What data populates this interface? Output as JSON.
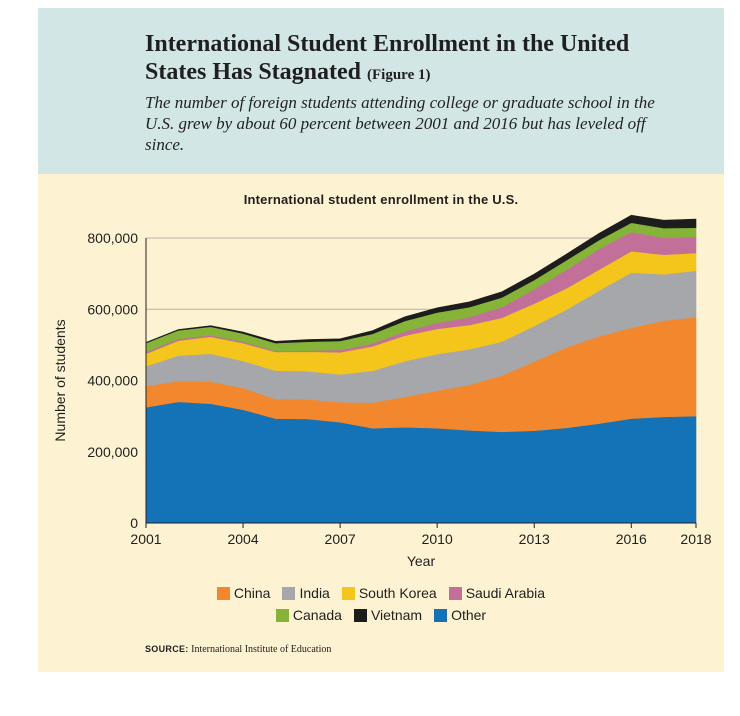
{
  "header": {
    "title": "International Student Enrollment in the United States Has Stagnated",
    "figure_tag": "(Figure 1)",
    "subtitle": "The number of foreign students attending college or graduate school in the U.S. grew by about 60 percent between 2001 and 2016 but has leveled off since."
  },
  "source": {
    "label": "SOURCE:",
    "text": "International Institute of Education"
  },
  "chart_data": {
    "type": "area",
    "stacked": true,
    "title": "International student enrollment in the U.S.",
    "xlabel": "Year",
    "ylabel": "Number of students",
    "xlim": [
      2001,
      2018
    ],
    "ylim": [
      0,
      800000
    ],
    "x_ticks": [
      2001,
      2004,
      2007,
      2010,
      2013,
      2016,
      2018
    ],
    "y_ticks": [
      0,
      200000,
      400000,
      600000,
      800000
    ],
    "y_tick_labels": [
      "0",
      "200,000",
      "400,000",
      "600,000",
      "800,000"
    ],
    "grid": "horizontal",
    "legend_position": "bottom",
    "x": [
      2001,
      2002,
      2003,
      2004,
      2005,
      2006,
      2007,
      2008,
      2009,
      2010,
      2011,
      2012,
      2013,
      2014,
      2015,
      2016,
      2017,
      2018
    ],
    "series": [
      {
        "name": "Other",
        "color": "#1473b7",
        "values": [
          325000,
          340000,
          335000,
          318000,
          293000,
          292000,
          283000,
          266000,
          269000,
          266000,
          260000,
          256000,
          259000,
          267000,
          279000,
          293000,
          298000,
          300000
        ]
      },
      {
        "name": "China",
        "color": "#f2872d",
        "values": [
          60000,
          58000,
          62000,
          61000,
          55000,
          55000,
          56000,
          72000,
          85000,
          105000,
          128000,
          158000,
          194000,
          226000,
          245000,
          255000,
          270000,
          278000
        ]
      },
      {
        "name": "India",
        "color": "#a5a7aa",
        "values": [
          55000,
          72000,
          78000,
          76000,
          80000,
          79000,
          78000,
          89000,
          100000,
          103000,
          100000,
          95000,
          100000,
          106000,
          128000,
          155000,
          130000,
          130000
        ]
      },
      {
        "name": "South Korea",
        "color": "#f4c51b",
        "values": [
          35000,
          42000,
          48000,
          50000,
          52000,
          55000,
          62000,
          69000,
          72000,
          71000,
          68000,
          67000,
          63000,
          60000,
          59000,
          60000,
          55000,
          50000
        ]
      },
      {
        "name": "Saudi Arabia",
        "color": "#c2709a",
        "values": [
          5000,
          5000,
          4000,
          4000,
          3000,
          3000,
          7000,
          8000,
          12000,
          17000,
          22000,
          30000,
          40000,
          52000,
          58000,
          54000,
          48000,
          45000
        ]
      },
      {
        "name": "Canada",
        "color": "#85b438",
        "values": [
          25000,
          24000,
          24000,
          23000,
          22000,
          25000,
          25000,
          27000,
          29000,
          29000,
          28000,
          27000,
          26000,
          27000,
          25000,
          26000,
          27000,
          26000
        ]
      },
      {
        "name": "Vietnam",
        "color": "#1d1d1d",
        "values": [
          2000,
          2000,
          3000,
          4000,
          5000,
          6000,
          6000,
          9000,
          12000,
          13000,
          15000,
          16000,
          17000,
          17000,
          19000,
          21000,
          22000,
          24000
        ]
      }
    ],
    "legend_rows": [
      [
        "China",
        "India",
        "South Korea",
        "Saudi Arabia"
      ],
      [
        "Canada",
        "Vietnam",
        "Other"
      ]
    ]
  }
}
